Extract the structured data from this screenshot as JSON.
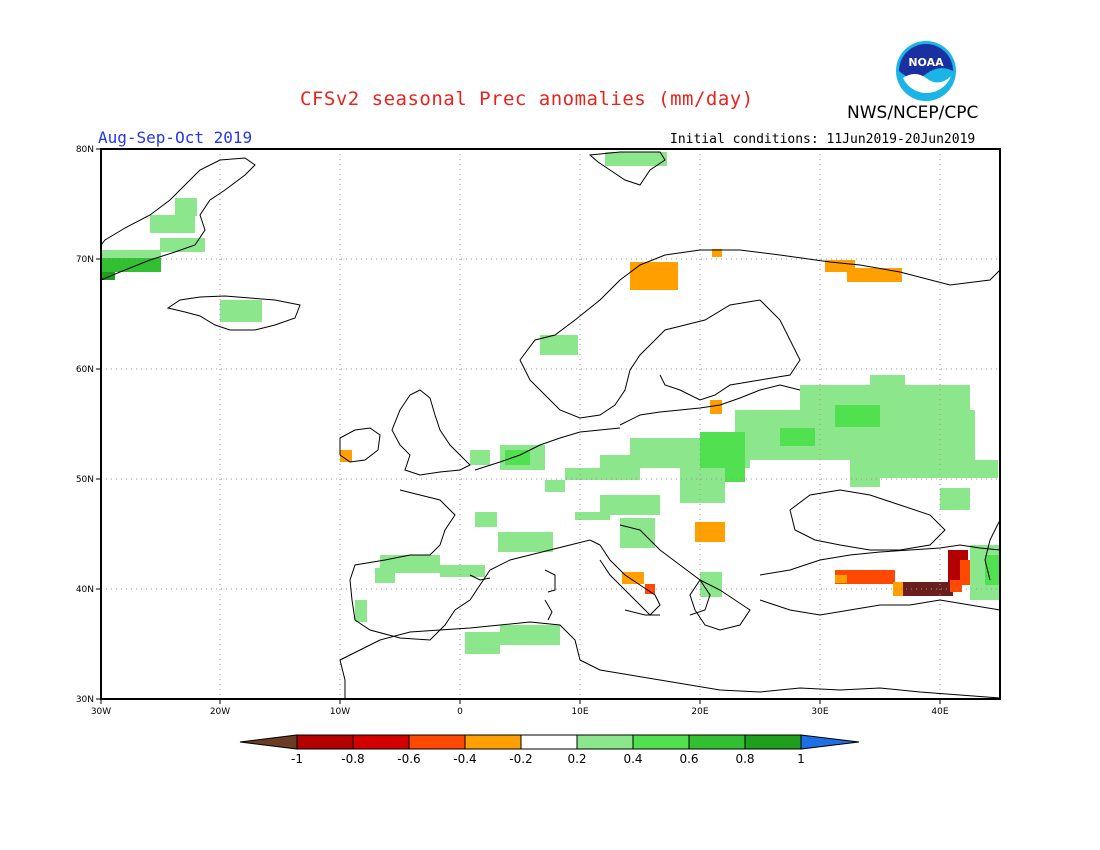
{
  "title": "CFSv2 seasonal Prec anomalies (mm/day)",
  "period": "Aug-Sep-Oct 2019",
  "initial_conditions": "Initial conditions: 11Jun2019-20Jun2019",
  "agency": "NWS/NCEP/CPC",
  "logo": {
    "icon": "noaa-logo",
    "text": "NOAA"
  },
  "map": {
    "lat_labels": [
      "80N",
      "70N",
      "60N",
      "50N",
      "40N",
      "30N"
    ],
    "lon_labels": [
      "30W",
      "20W",
      "10W",
      "0",
      "10E",
      "20E",
      "30E",
      "40E"
    ]
  },
  "colorbar": {
    "labels": [
      "-1",
      "-0.8",
      "-0.6",
      "-0.4",
      "-0.2",
      "0.2",
      "0.4",
      "0.6",
      "0.8",
      "1"
    ],
    "colors": [
      "#6b3c24",
      "#b30000",
      "#d40000",
      "#ff4800",
      "#ffa000",
      "#ffffff",
      "#8ce68c",
      "#50e050",
      "#32c032",
      "#1ea01e",
      "#1e6ee6"
    ]
  }
}
